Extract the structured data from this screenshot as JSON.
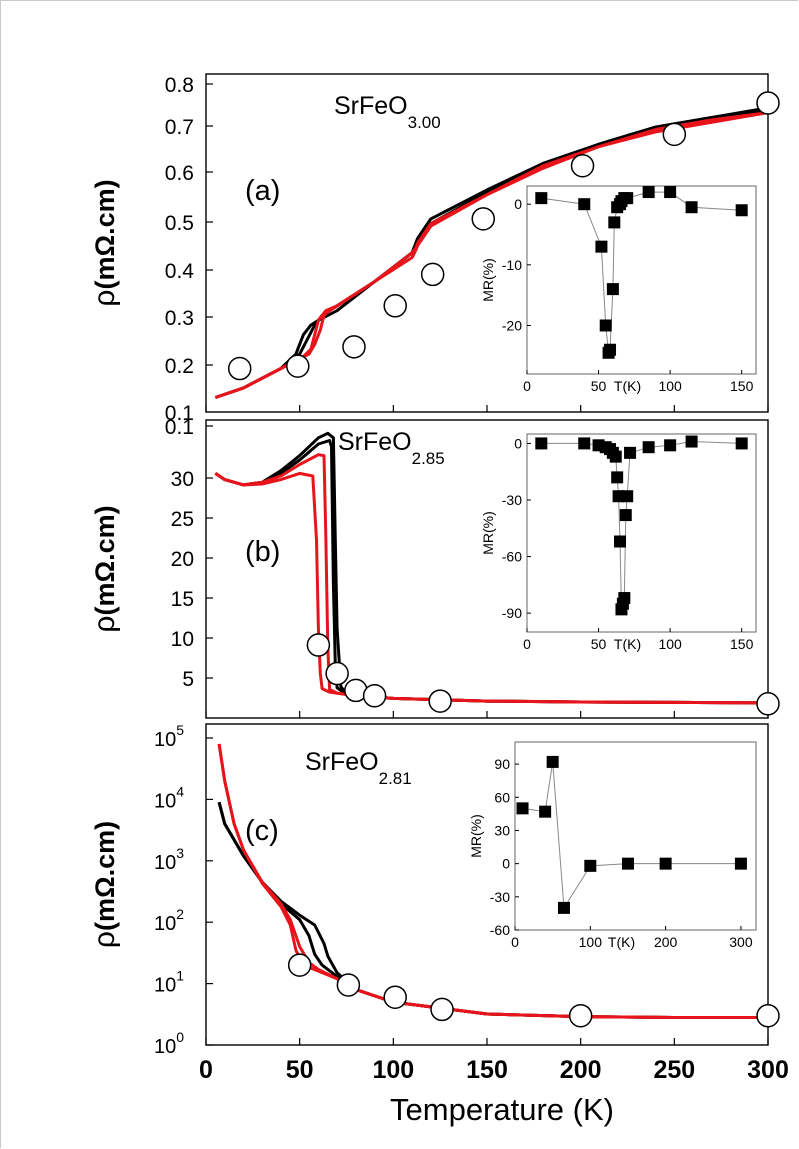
{
  "figure": {
    "xlabel": "Temperature (K)",
    "xticks": [
      "0",
      "50",
      "100",
      "150",
      "200",
      "250",
      "300"
    ],
    "colors": {
      "series_1": "#000000",
      "series_2": "#e8141b",
      "markers": "#ffffff"
    }
  },
  "chart_data": [
    {
      "id": "a",
      "type": "line",
      "panel_label": "(a)",
      "compound": {
        "base": "SrFeO",
        "sub": "3.00"
      },
      "xlim": [
        0,
        300
      ],
      "ylim": [
        0.1,
        0.8
      ],
      "ylabel_rho": "ρ",
      "ylabel_unit": "(mΩ.cm)",
      "yscale": "linear",
      "yticks": [
        "0.1",
        "0.2",
        "0.3",
        "0.4",
        "0.5",
        "0.6",
        "0.7",
        "0.8"
      ],
      "series": [
        {
          "color": "#000000",
          "x": [
            5,
            20,
            40,
            48,
            52,
            56,
            60,
            70,
            90,
            110,
            112,
            113,
            120,
            150,
            180,
            210,
            240,
            270,
            300
          ],
          "y": [
            0.13,
            0.15,
            0.19,
            0.22,
            0.26,
            0.28,
            0.29,
            0.31,
            0.37,
            0.43,
            0.45,
            0.46,
            0.5,
            0.56,
            0.615,
            0.655,
            0.69,
            0.71,
            0.73
          ]
        },
        {
          "color": "#000000",
          "x": [
            5,
            20,
            40,
            50,
            54,
            58,
            62,
            70,
            90,
            110,
            112,
            113,
            120,
            150,
            180,
            210,
            240,
            270,
            300
          ],
          "y": [
            0.13,
            0.15,
            0.19,
            0.22,
            0.25,
            0.28,
            0.3,
            0.32,
            0.37,
            0.43,
            0.445,
            0.455,
            0.49,
            0.555,
            0.61,
            0.655,
            0.69,
            0.71,
            0.725
          ]
        },
        {
          "color": "#e8141b",
          "x": [
            5,
            20,
            40,
            52,
            56,
            58,
            60,
            62,
            64,
            70,
            90,
            110,
            112,
            113,
            120,
            150,
            180,
            210,
            240,
            270,
            300
          ],
          "y": [
            0.13,
            0.15,
            0.19,
            0.215,
            0.23,
            0.26,
            0.29,
            0.3,
            0.31,
            0.32,
            0.37,
            0.43,
            0.44,
            0.45,
            0.49,
            0.55,
            0.61,
            0.65,
            0.685,
            0.705,
            0.72
          ]
        },
        {
          "color": "#e8141b",
          "x": [
            5,
            20,
            40,
            55,
            58,
            61,
            63,
            66,
            70,
            90,
            110,
            112,
            113,
            120,
            150,
            180,
            210,
            240,
            270,
            300
          ],
          "y": [
            0.13,
            0.15,
            0.19,
            0.22,
            0.24,
            0.27,
            0.3,
            0.31,
            0.32,
            0.37,
            0.42,
            0.435,
            0.445,
            0.485,
            0.55,
            0.605,
            0.65,
            0.68,
            0.7,
            0.72
          ]
        }
      ],
      "markers": {
        "x": [
          18,
          49,
          79,
          101,
          121,
          148,
          201,
          250,
          300
        ],
        "y": [
          0.19,
          0.195,
          0.235,
          0.32,
          0.385,
          0.5,
          0.61,
          0.675,
          0.74
        ]
      },
      "inset": {
        "type": "scatter",
        "xlabel": "T(K)",
        "ylabel": "MR(%)",
        "xlim": [
          0,
          160
        ],
        "ylim": [
          -28,
          3
        ],
        "xticks": [
          0,
          50,
          100,
          150
        ],
        "xtick_labels": [
          "0",
          "50",
          "100",
          "150"
        ],
        "yticks": [
          0,
          -10,
          -20
        ],
        "ytick_labels": [
          "0",
          "-10",
          "-20"
        ],
        "x": [
          10,
          40,
          52,
          55,
          57,
          58,
          60,
          61,
          63,
          65,
          66,
          68,
          70,
          85,
          100,
          115,
          150
        ],
        "y": [
          1,
          0,
          -7,
          -20,
          -24.5,
          -24,
          -14,
          -3,
          -0.5,
          0,
          0.5,
          1,
          1,
          2,
          2,
          -0.5,
          -1
        ]
      }
    },
    {
      "id": "b",
      "type": "line",
      "panel_label": "(b)",
      "compound": {
        "base": "SrFeO",
        "sub": "2.85"
      },
      "xlim": [
        0,
        300
      ],
      "ylim": [
        0,
        33.5
      ],
      "ylabel_rho": "ρ",
      "ylabel_unit": "(mΩ.cm)",
      "yscale": "linear",
      "yticks": [
        "0.1",
        "5",
        "10",
        "15",
        "20",
        "25",
        "30"
      ],
      "series": [
        {
          "color": "#000000",
          "x": [
            5,
            10,
            20,
            30,
            40,
            50,
            60,
            65,
            68,
            69,
            70,
            72,
            75,
            80,
            100,
            150,
            200,
            250,
            300
          ],
          "y": [
            27.5,
            26.8,
            26.2,
            26.5,
            27.8,
            29.5,
            31.5,
            32.0,
            31.5,
            20,
            10,
            3.5,
            2.8,
            2.5,
            2.2,
            1.9,
            1.8,
            1.75,
            1.7
          ]
        },
        {
          "color": "#000000",
          "x": [
            5,
            10,
            20,
            30,
            40,
            50,
            60,
            66,
            67,
            68,
            69,
            70,
            74,
            80,
            100,
            150,
            200,
            250,
            300
          ],
          "y": [
            27.5,
            26.8,
            26.2,
            26.5,
            27.5,
            29.0,
            30.8,
            31.2,
            30.5,
            15,
            6,
            3.4,
            2.8,
            2.5,
            2.2,
            1.9,
            1.8,
            1.75,
            1.7
          ]
        },
        {
          "color": "#e8141b",
          "x": [
            5,
            10,
            20,
            30,
            40,
            50,
            60,
            63,
            64,
            65,
            66,
            70,
            80,
            100,
            150,
            200,
            250,
            300
          ],
          "y": [
            27.5,
            26.8,
            26.2,
            26.5,
            27.2,
            28.5,
            29.6,
            29.5,
            20,
            8,
            3.2,
            2.8,
            2.5,
            2.2,
            1.9,
            1.8,
            1.75,
            1.7
          ]
        },
        {
          "color": "#e8141b",
          "x": [
            5,
            10,
            20,
            30,
            40,
            50,
            57,
            59,
            60,
            61,
            62,
            66,
            80,
            100,
            150,
            200,
            250,
            300
          ],
          "y": [
            27.5,
            26.8,
            26.2,
            26.3,
            26.8,
            27.5,
            27.2,
            20,
            10,
            5,
            3.3,
            2.9,
            2.5,
            2.2,
            1.9,
            1.8,
            1.75,
            1.7
          ]
        }
      ],
      "markers": {
        "x": [
          60,
          70,
          80,
          90,
          125,
          300
        ],
        "y": [
          8.2,
          5.0,
          3.1,
          2.5,
          1.9,
          1.6
        ]
      },
      "inset": {
        "type": "scatter",
        "xlabel": "T(K)",
        "ylabel": "MR(%)",
        "xlim": [
          0,
          160
        ],
        "ylim": [
          -100,
          5
        ],
        "xticks": [
          0,
          50,
          100,
          150
        ],
        "xtick_labels": [
          "0",
          "50",
          "100",
          "150"
        ],
        "yticks": [
          0,
          -30,
          -60,
          -90
        ],
        "ytick_labels": [
          "0",
          "-30",
          "-60",
          "-90"
        ],
        "x": [
          10,
          40,
          50,
          55,
          58,
          60,
          62,
          63,
          64,
          65,
          66,
          67,
          68,
          69,
          70,
          72,
          85,
          100,
          115,
          150
        ],
        "y": [
          0,
          0,
          -1,
          -2,
          -3,
          -5,
          -7,
          -18,
          -28,
          -52,
          -88,
          -85,
          -82,
          -38,
          -28,
          -5,
          -2,
          -1,
          1,
          0
        ]
      }
    },
    {
      "id": "c",
      "type": "line",
      "panel_label": "(c)",
      "compound": {
        "base": "SrFeO",
        "sub": "2.81"
      },
      "xlim": [
        0,
        300
      ],
      "ylim": [
        1,
        100000
      ],
      "ylabel_rho": "ρ",
      "ylabel_unit": "(mΩ.cm)",
      "yscale": "log",
      "yticks": [
        {
          "base": "10",
          "exp": "0"
        },
        {
          "base": "10",
          "exp": "1"
        },
        {
          "base": "10",
          "exp": "2"
        },
        {
          "base": "10",
          "exp": "3"
        },
        {
          "base": "10",
          "exp": "4"
        },
        {
          "base": "10",
          "exp": "5"
        }
      ],
      "series": [
        {
          "color": "#000000",
          "x": [
            7,
            10,
            20,
            30,
            40,
            50,
            58,
            63,
            65,
            70,
            80,
            100,
            150,
            200,
            250,
            300
          ],
          "y": [
            9000,
            4000,
            1200,
            450,
            220,
            130,
            90,
            45,
            28,
            15,
            8,
            5,
            3.2,
            2.9,
            2.8,
            2.8
          ]
        },
        {
          "color": "#000000",
          "x": [
            7,
            10,
            20,
            30,
            40,
            50,
            55,
            58,
            62,
            70,
            80,
            100,
            150,
            200,
            250,
            300
          ],
          "y": [
            9000,
            4000,
            1200,
            450,
            200,
            110,
            60,
            30,
            20,
            13,
            8,
            5,
            3.2,
            2.9,
            2.8,
            2.8
          ]
        },
        {
          "color": "#e8141b",
          "x": [
            7,
            10,
            15,
            20,
            30,
            40,
            45,
            50,
            55,
            60,
            70,
            80,
            100,
            150,
            200,
            250,
            300
          ],
          "y": [
            80000,
            20000,
            4000,
            1500,
            450,
            200,
            110,
            40,
            22,
            17,
            12,
            8,
            5,
            3.2,
            2.9,
            2.8,
            2.8
          ]
        },
        {
          "color": "#e8141b",
          "x": [
            7,
            10,
            15,
            20,
            30,
            40,
            45,
            48,
            52,
            60,
            70,
            80,
            100,
            150,
            200,
            250,
            300
          ],
          "y": [
            80000,
            20000,
            4000,
            1500,
            430,
            180,
            90,
            35,
            20,
            16,
            12,
            8,
            5,
            3.2,
            2.9,
            2.8,
            2.8
          ]
        }
      ],
      "markers": {
        "x": [
          50,
          76,
          101,
          126,
          200,
          300
        ],
        "y": [
          20,
          9.5,
          6,
          3.8,
          3.0,
          3.0
        ]
      },
      "inset": {
        "type": "scatter",
        "xlabel": "T(K)",
        "ylabel": "MR(%)",
        "xlim": [
          0,
          320
        ],
        "ylim": [
          -60,
          110
        ],
        "xticks": [
          0,
          100,
          200,
          300
        ],
        "xtick_labels": [
          "0",
          "100",
          "200",
          "300"
        ],
        "yticks": [
          90,
          60,
          30,
          0,
          -30,
          -60
        ],
        "ytick_labels": [
          "90",
          "60",
          "30",
          "0",
          "-30",
          "-60"
        ],
        "x": [
          10,
          40,
          50,
          65,
          100,
          150,
          200,
          300
        ],
        "y": [
          50,
          47,
          92,
          -40,
          -2,
          0,
          0,
          0
        ]
      }
    }
  ]
}
